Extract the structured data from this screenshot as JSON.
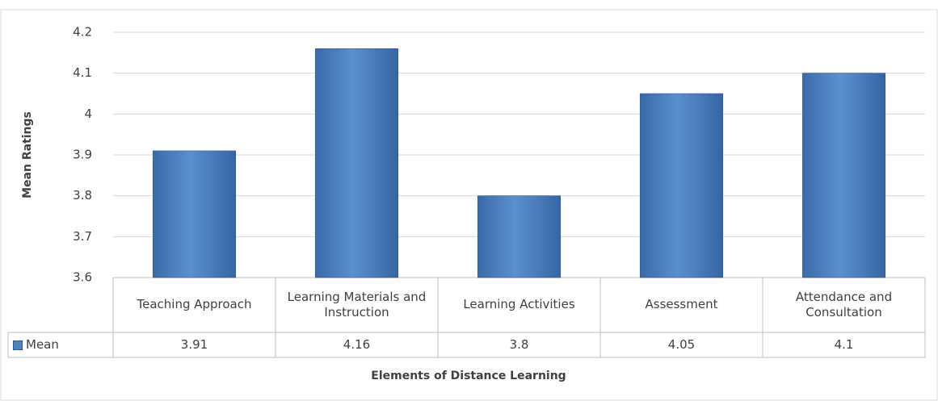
{
  "chart_data": {
    "type": "bar",
    "x_label": "Elements of Distance Learning",
    "y_label": "Mean Ratings",
    "categories": [
      "Teaching Approach",
      "Learning Materials and Instruction",
      "Learning Activities",
      "Assessment",
      "Attendance and Consultation"
    ],
    "series": [
      {
        "name": "Mean",
        "color": "#4f81bd",
        "values": [
          3.91,
          4.16,
          3.8,
          4.05,
          4.1
        ]
      }
    ],
    "ylim": [
      3.6,
      4.2
    ],
    "yticks": [
      3.6,
      3.7,
      3.8,
      3.9,
      4,
      4.1,
      4.2
    ],
    "grid": true,
    "data_table": true
  }
}
